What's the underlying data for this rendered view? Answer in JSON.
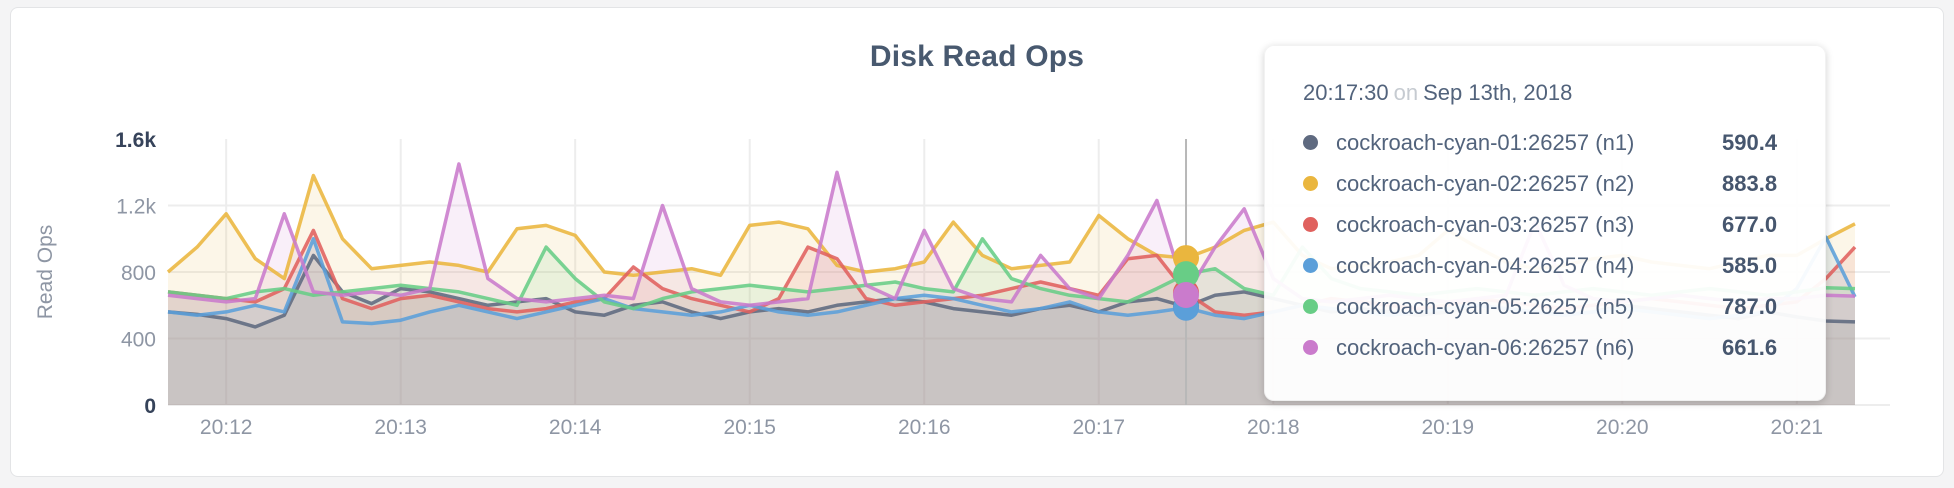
{
  "panel": {
    "title": "Disk Read Ops"
  },
  "chart_data": {
    "type": "line",
    "title": "Disk Read Ops",
    "xlabel": "",
    "ylabel": "Read Ops",
    "ylim": [
      0,
      1600
    ],
    "grid": true,
    "legend_position": "none",
    "x_start": "20:11:40",
    "sample_interval_seconds": 10,
    "x_ticks": [
      "20:12",
      "20:13",
      "20:14",
      "20:15",
      "20:16",
      "20:17",
      "20:18",
      "20:19",
      "20:20",
      "20:21"
    ],
    "x_tick_start_index": 2,
    "x_tick_step": 6,
    "y_ticks": [
      {
        "label": "0",
        "value": 0,
        "bold": true,
        "gridline": true
      },
      {
        "label": "400",
        "value": 400,
        "bold": false,
        "gridline": true
      },
      {
        "label": "800",
        "value": 800,
        "bold": false,
        "gridline": true
      },
      {
        "label": "1.2k",
        "value": 1200,
        "bold": false,
        "gridline": true
      },
      {
        "label": "1.6k",
        "value": 1600,
        "bold": true,
        "gridline": false
      }
    ],
    "hover": {
      "index": 35,
      "time": "20:17:30",
      "date": "Sep 13th, 2018"
    },
    "series": [
      {
        "name": "cockroach-cyan-01:26257 (n1)",
        "node": "n1",
        "color": "#5f6a80",
        "values": [
          560,
          545,
          520,
          470,
          540,
          900,
          680,
          610,
          700,
          680,
          640,
          600,
          620,
          640,
          560,
          540,
          600,
          620,
          560,
          520,
          560,
          580,
          560,
          600,
          620,
          640,
          620,
          580,
          560,
          540,
          580,
          600,
          560,
          620,
          640,
          590.4,
          660,
          680,
          640,
          600,
          560,
          580,
          560,
          540,
          560,
          600,
          580,
          560,
          540,
          560,
          600,
          580,
          560,
          540,
          520,
          560,
          530,
          505,
          500
        ]
      },
      {
        "name": "cockroach-cyan-02:26257 (n2)",
        "node": "n2",
        "color": "#eab63e",
        "values": [
          800,
          950,
          1150,
          880,
          760,
          1380,
          1000,
          820,
          840,
          860,
          840,
          800,
          1060,
          1080,
          1020,
          800,
          780,
          800,
          820,
          780,
          1080,
          1100,
          1060,
          840,
          800,
          820,
          860,
          1100,
          900,
          820,
          840,
          860,
          1140,
          1000,
          900,
          883.8,
          950,
          1050,
          1100,
          900,
          820,
          840,
          860,
          900,
          1050,
          950,
          860,
          820,
          840,
          880,
          900,
          860,
          840,
          820,
          860,
          900,
          900,
          1000,
          1090
        ]
      },
      {
        "name": "cockroach-cyan-03:26257 (n3)",
        "node": "n3",
        "color": "#e0615e",
        "values": [
          680,
          660,
          640,
          620,
          700,
          1050,
          640,
          580,
          640,
          660,
          620,
          580,
          560,
          580,
          620,
          640,
          830,
          700,
          640,
          600,
          560,
          640,
          950,
          880,
          640,
          600,
          620,
          640,
          660,
          700,
          740,
          700,
          660,
          880,
          900,
          677,
          560,
          540,
          560,
          600,
          640,
          620,
          600,
          580,
          600,
          640,
          620,
          600,
          580,
          600,
          620,
          640,
          620,
          600,
          580,
          600,
          620,
          760,
          950
        ]
      },
      {
        "name": "cockroach-cyan-04:26257 (n4)",
        "node": "n4",
        "color": "#5b9fd9",
        "values": [
          560,
          540,
          560,
          600,
          560,
          1000,
          500,
          490,
          510,
          560,
          600,
          560,
          520,
          560,
          600,
          640,
          580,
          560,
          540,
          560,
          600,
          560,
          540,
          560,
          600,
          640,
          660,
          640,
          600,
          560,
          580,
          620,
          560,
          540,
          560,
          585,
          540,
          520,
          560,
          600,
          580,
          560,
          540,
          560,
          580,
          600,
          580,
          560,
          540,
          560,
          580,
          560,
          540,
          520,
          540,
          560,
          700,
          1010,
          650
        ]
      },
      {
        "name": "cockroach-cyan-05:26257 (n5)",
        "node": "n5",
        "color": "#68cd86",
        "values": [
          680,
          660,
          640,
          680,
          700,
          660,
          680,
          700,
          720,
          700,
          680,
          640,
          600,
          950,
          760,
          620,
          580,
          640,
          680,
          700,
          720,
          700,
          680,
          700,
          720,
          740,
          700,
          680,
          1000,
          760,
          700,
          660,
          640,
          620,
          700,
          787,
          820,
          700,
          660,
          950,
          760,
          700,
          680,
          660,
          680,
          700,
          680,
          660,
          680,
          700,
          680,
          660,
          680,
          700,
          680,
          660,
          680,
          705,
          700
        ]
      },
      {
        "name": "cockroach-cyan-06:26257 (n6)",
        "node": "n6",
        "color": "#ca7bcc",
        "values": [
          660,
          640,
          620,
          640,
          1150,
          680,
          660,
          680,
          660,
          700,
          1450,
          760,
          640,
          620,
          640,
          660,
          640,
          1200,
          700,
          620,
          600,
          620,
          640,
          1400,
          720,
          640,
          1050,
          700,
          640,
          620,
          900,
          700,
          640,
          900,
          1230,
          661.6,
          950,
          1180,
          760,
          640,
          620,
          640,
          660,
          640,
          620,
          640,
          660,
          1100,
          720,
          640,
          620,
          640,
          660,
          640,
          620,
          640,
          640,
          660,
          655
        ]
      }
    ]
  },
  "tooltip": {
    "time": "20:17:30",
    "connector": "on",
    "date": "Sep 13th, 2018",
    "rows": [
      {
        "label": "cockroach-cyan-01:26257 (n1)",
        "value": "590.4",
        "color": "#5f6a80"
      },
      {
        "label": "cockroach-cyan-02:26257 (n2)",
        "value": "883.8",
        "color": "#eab63e"
      },
      {
        "label": "cockroach-cyan-03:26257 (n3)",
        "value": "677.0",
        "color": "#e0615e"
      },
      {
        "label": "cockroach-cyan-04:26257 (n4)",
        "value": "585.0",
        "color": "#5b9fd9"
      },
      {
        "label": "cockroach-cyan-05:26257 (n5)",
        "value": "787.0",
        "color": "#68cd86"
      },
      {
        "label": "cockroach-cyan-06:26257 (n6)",
        "value": "661.6",
        "color": "#ca7bcc"
      }
    ]
  },
  "colors": {
    "title_text": "#48596f",
    "tick_text": "#8e96a4",
    "tick_text_bold": "#36435a",
    "gridline": "#ededed",
    "crosshair": "#b8b8b8",
    "panel_bg": "#ffffff",
    "page_bg": "#f4f4f5"
  }
}
